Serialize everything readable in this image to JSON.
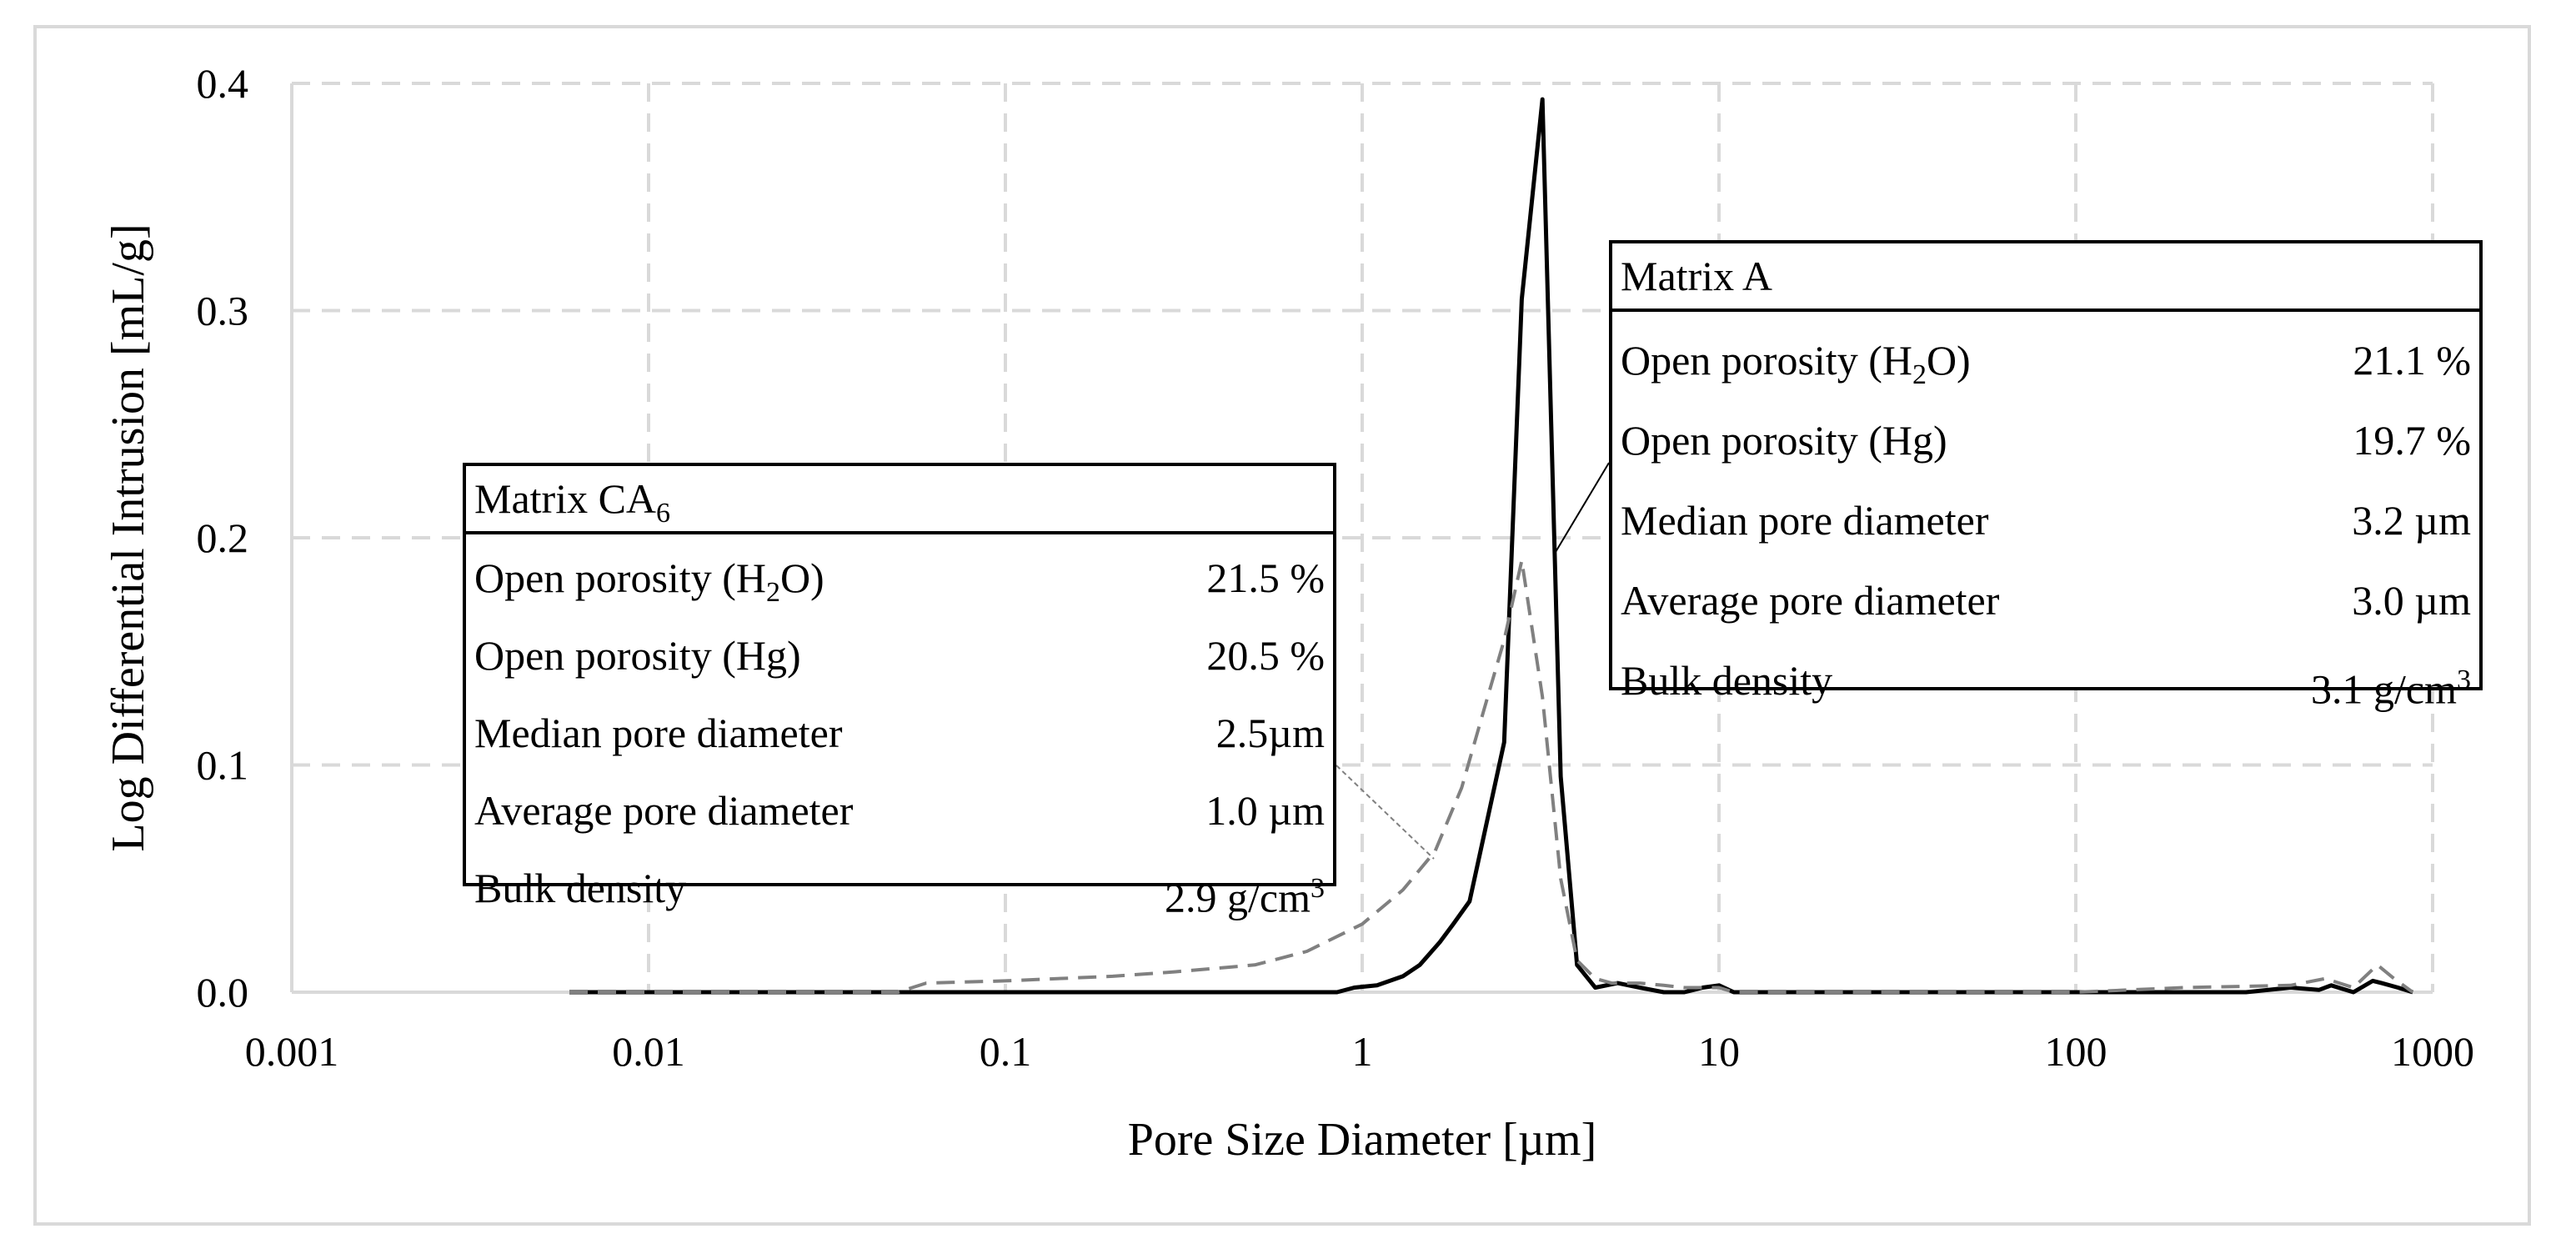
{
  "chart_data": {
    "type": "line",
    "title": "",
    "xlabel": "Pore Size Diameter [µm]",
    "ylabel": "Log Differential Intrusion [mL/g]",
    "xscale": "log",
    "xlim": [
      0.001,
      1000
    ],
    "ylim": [
      0,
      0.4
    ],
    "xticks": [
      0.001,
      0.01,
      0.1,
      1,
      10,
      100,
      1000
    ],
    "xtick_labels": [
      "0.001",
      "0.01",
      "0.1",
      "1",
      "10",
      "100",
      "1000"
    ],
    "yticks": [
      0,
      0.1,
      0.2,
      0.3,
      0.4
    ],
    "ytick_labels": [
      "0.0",
      "0.1",
      "0.2",
      "0.3",
      "0.4"
    ],
    "grid": true,
    "series": [
      {
        "name": "Matrix A",
        "style": "solid",
        "color": "#000000",
        "x": [
          0.006,
          0.05,
          0.3,
          0.85,
          0.95,
          1.1,
          1.3,
          1.45,
          1.65,
          1.8,
          2.0,
          2.2,
          2.5,
          2.8,
          3.2,
          3.6,
          4.0,
          4.5,
          5.2,
          6.0,
          7.0,
          8.0,
          9.0,
          10.0,
          11.0,
          15,
          50,
          150,
          300,
          400,
          480,
          520,
          600,
          680,
          720,
          800,
          880
        ],
        "y": [
          0,
          0,
          0,
          0,
          0.002,
          0.003,
          0.007,
          0.012,
          0.022,
          0.03,
          0.04,
          0.07,
          0.11,
          0.305,
          0.393,
          0.095,
          0.012,
          0.002,
          0.004,
          0.002,
          0.0,
          0.0,
          0.002,
          0.003,
          0.0,
          0,
          0,
          0,
          0,
          0.002,
          0.001,
          0.003,
          0.0,
          0.005,
          0.004,
          0.002,
          0.0
        ]
      },
      {
        "name": "Matrix CA6",
        "style": "dashed",
        "color": "#808080",
        "x": [
          0.006,
          0.05,
          0.06,
          0.1,
          0.2,
          0.3,
          0.5,
          0.7,
          1.0,
          1.3,
          1.6,
          1.9,
          2.2,
          2.5,
          2.8,
          3.2,
          3.6,
          4.0,
          4.5,
          5.0,
          6.0,
          7.0,
          8.0,
          9.0,
          10.0,
          11.0,
          15,
          100,
          200,
          400,
          500,
          600,
          700,
          780,
          880
        ],
        "y": [
          0,
          0,
          0.004,
          0.005,
          0.007,
          0.009,
          0.012,
          0.018,
          0.03,
          0.045,
          0.062,
          0.09,
          0.125,
          0.155,
          0.19,
          0.13,
          0.05,
          0.014,
          0.006,
          0.004,
          0.004,
          0.003,
          0.002,
          0.002,
          0.002,
          0.0,
          0,
          0,
          0.002,
          0.003,
          0.006,
          0.002,
          0.012,
          0.006,
          0.0
        ]
      }
    ],
    "annotations": [
      {
        "name": "Matrix A",
        "title": "Matrix A",
        "rows": [
          {
            "label": "Open porosity (H",
            "label_sub": "2",
            "label_end": "O)",
            "value": "21.1 %",
            "value_sup": ""
          },
          {
            "label": "Open porosity (Hg)",
            "label_sub": "",
            "label_end": "",
            "value": "19.7 %",
            "value_sup": ""
          },
          {
            "label": "Median pore diameter",
            "label_sub": "",
            "label_end": "",
            "value": "3.2 µm",
            "value_sup": ""
          },
          {
            "label": "Average pore diameter",
            "label_sub": "",
            "label_end": "",
            "value": "3.0 µm",
            "value_sup": ""
          },
          {
            "label": "Bulk density",
            "label_sub": "",
            "label_end": "",
            "value": "3.1 g/cm",
            "value_sup": "3"
          }
        ]
      },
      {
        "name": "Matrix CA6",
        "title": "Matrix CA",
        "title_sub": "6",
        "rows": [
          {
            "label": "Open porosity (H",
            "label_sub": "2",
            "label_end": "O)",
            "value": "21.5 %",
            "value_sup": ""
          },
          {
            "label": "Open porosity (Hg)",
            "label_sub": "",
            "label_end": "",
            "value": "20.5 %",
            "value_sup": ""
          },
          {
            "label": "Median pore diameter",
            "label_sub": "",
            "label_end": "",
            "value": "2.5µm",
            "value_sup": ""
          },
          {
            "label": "Average pore diameter",
            "label_sub": "",
            "label_end": "",
            "value": "1.0 µm",
            "value_sup": ""
          },
          {
            "label": "Bulk density",
            "label_sub": "",
            "label_end": "",
            "value": "2.9 g/cm",
            "value_sup": "3"
          }
        ]
      }
    ]
  }
}
